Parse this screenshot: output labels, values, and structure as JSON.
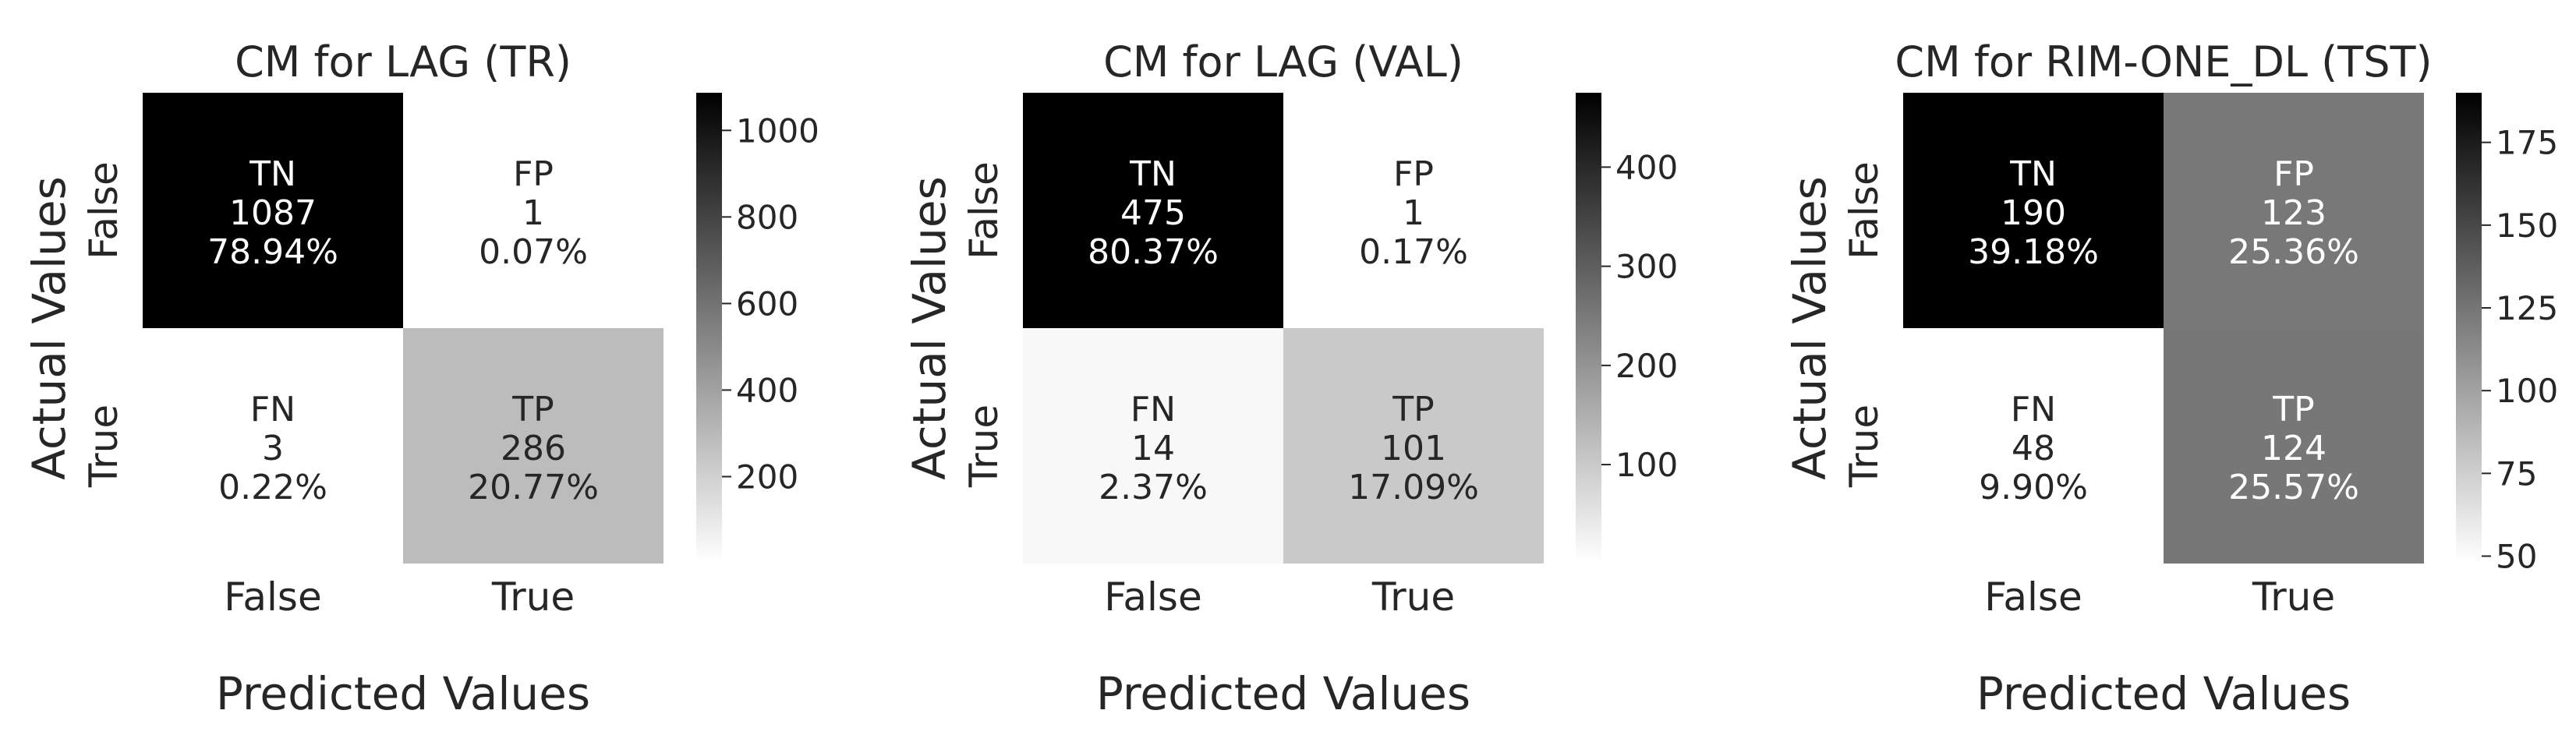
{
  "chart_data": [
    {
      "type": "heatmap",
      "title": "CM for LAG (TR)",
      "xlabel": "Predicted Values",
      "ylabel": "Actual Values",
      "x_tick_labels": [
        "False",
        "True"
      ],
      "y_tick_labels": [
        "False",
        "True"
      ],
      "cells": [
        [
          {
            "label": "TN",
            "count": 1087,
            "percent": "78.94%"
          },
          {
            "label": "FP",
            "count": 1,
            "percent": "0.07%"
          }
        ],
        [
          {
            "label": "FN",
            "count": 3,
            "percent": "0.22%"
          },
          {
            "label": "TP",
            "count": 286,
            "percent": "20.77%"
          }
        ]
      ],
      "colorbar": {
        "min": 1,
        "max": 1087,
        "ticks": [
          200,
          400,
          600,
          800,
          1000
        ]
      },
      "colormap": [
        "#ffffff",
        "#000000"
      ]
    },
    {
      "type": "heatmap",
      "title": "CM for LAG (VAL)",
      "xlabel": "Predicted Values",
      "ylabel": "Actual Values",
      "x_tick_labels": [
        "False",
        "True"
      ],
      "y_tick_labels": [
        "False",
        "True"
      ],
      "cells": [
        [
          {
            "label": "TN",
            "count": 475,
            "percent": "80.37%"
          },
          {
            "label": "FP",
            "count": 1,
            "percent": "0.17%"
          }
        ],
        [
          {
            "label": "FN",
            "count": 14,
            "percent": "2.37%"
          },
          {
            "label": "TP",
            "count": 101,
            "percent": "17.09%"
          }
        ]
      ],
      "colorbar": {
        "min": 1,
        "max": 475,
        "ticks": [
          100,
          200,
          300,
          400
        ]
      },
      "colormap": [
        "#ffffff",
        "#000000"
      ]
    },
    {
      "type": "heatmap",
      "title": "CM for RIM-ONE_DL (TST)",
      "xlabel": "Predicted Values",
      "ylabel": "Actual Values",
      "x_tick_labels": [
        "False",
        "True"
      ],
      "y_tick_labels": [
        "False",
        "True"
      ],
      "cells": [
        [
          {
            "label": "TN",
            "count": 190,
            "percent": "39.18%"
          },
          {
            "label": "FP",
            "count": 123,
            "percent": "25.36%"
          }
        ],
        [
          {
            "label": "FN",
            "count": 48,
            "percent": "9.90%"
          },
          {
            "label": "TP",
            "count": 124,
            "percent": "25.57%"
          }
        ]
      ],
      "colorbar": {
        "min": 48,
        "max": 190,
        "ticks": [
          50,
          75,
          100,
          125,
          150,
          175
        ]
      },
      "colormap": [
        "#ffffff",
        "#000000"
      ]
    }
  ]
}
